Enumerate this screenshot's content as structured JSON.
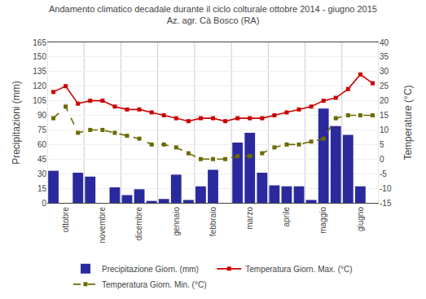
{
  "chart_data": {
    "type": "bar",
    "title": "Andamento climatico decadale durante il ciclo colturale ottobre 2014 - giugno 2015",
    "subtitle": "Az. agr. Cà Bosco (RA)",
    "ylabel": "Precipitazioni (mm)",
    "y2label": "Temperature (°C)",
    "categories": [
      null,
      "ottobre",
      null,
      null,
      "novembre",
      null,
      null,
      "dicembre",
      null,
      null,
      "gennaio",
      null,
      null,
      "febbraio",
      null,
      null,
      "marzo",
      null,
      null,
      "aprile",
      null,
      null,
      "maggio",
      null,
      null,
      "giugno",
      null
    ],
    "series": [
      {
        "name": "Precipitazione Giorn. (mm)",
        "type": "bar",
        "color": "#2a2a9e",
        "values": [
          33,
          0,
          31,
          27,
          0,
          16,
          8,
          14,
          2,
          4,
          29,
          3,
          17,
          34,
          0,
          62,
          72,
          31,
          18,
          17,
          17,
          3,
          97,
          79,
          70,
          17,
          0
        ]
      },
      {
        "name": "Temperatura Giorn. Max. (°C)",
        "type": "line",
        "axis": "y2",
        "color": "#cc0000",
        "marker": "square",
        "line_style": "solid",
        "values": [
          23,
          25,
          19,
          20,
          20,
          18,
          17,
          17,
          16,
          15,
          14,
          13,
          14,
          14,
          13,
          14,
          14,
          14,
          15,
          16,
          17,
          18,
          20,
          21,
          24,
          29,
          26
        ]
      },
      {
        "name": "Temperatura Giorn. Min. (°C)",
        "type": "line",
        "axis": "y2",
        "color": "#6b6b00",
        "marker": "square",
        "line_style": "dashed",
        "values": [
          14,
          18,
          9,
          10,
          10,
          9,
          8,
          7,
          5,
          5,
          4,
          2,
          0,
          0,
          0,
          1,
          1,
          2,
          4,
          5,
          5,
          6,
          7,
          14,
          15,
          15,
          15
        ]
      }
    ],
    "ylim": [
      0,
      165
    ],
    "yticks": [
      0,
      15,
      30,
      45,
      60,
      75,
      90,
      105,
      120,
      135,
      150,
      165
    ],
    "y2lim": [
      -15,
      40
    ],
    "y2ticks": [
      -15,
      -10,
      -5,
      0,
      5,
      10,
      15,
      20,
      25,
      30,
      35,
      40
    ],
    "grid": true,
    "legend": "bottom"
  }
}
